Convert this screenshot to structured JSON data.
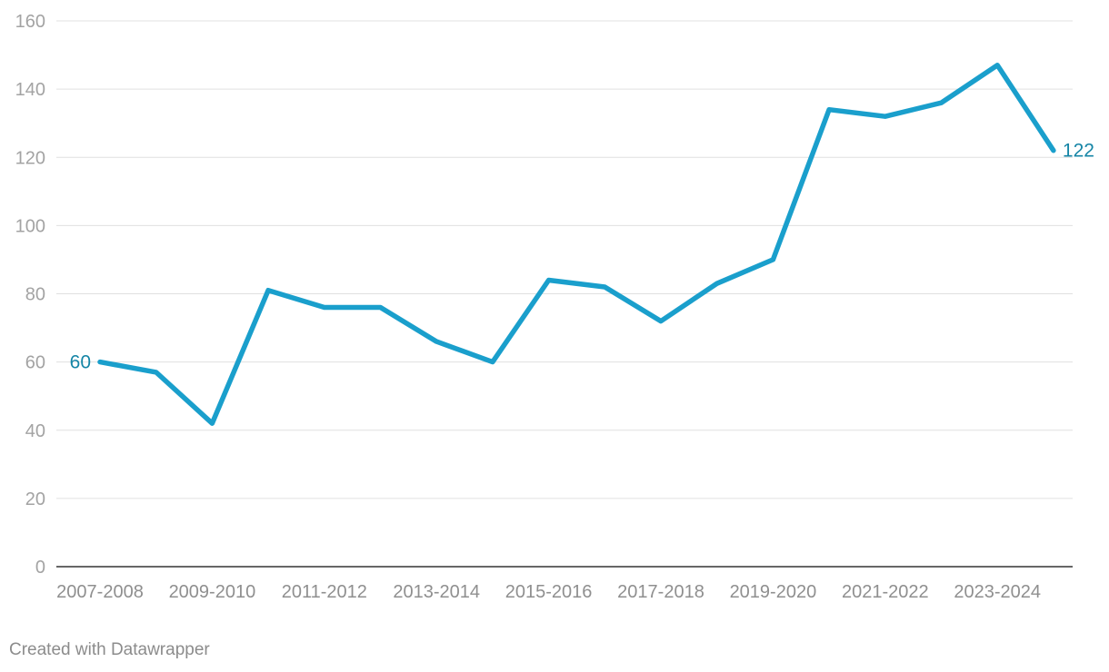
{
  "chart_data": {
    "type": "line",
    "categories": [
      "2007-2008",
      "2008-2009",
      "2009-2010",
      "2010-2011",
      "2011-2012",
      "2012-2013",
      "2013-2014",
      "2014-2015",
      "2015-2016",
      "2016-2017",
      "2017-2018",
      "2018-2019",
      "2019-2020",
      "2020-2021",
      "2021-2022",
      "2022-2023",
      "2023-2024",
      "2024-2025"
    ],
    "x_tick_labels": [
      "2007-2008",
      "2009-2010",
      "2011-2012",
      "2013-2014",
      "2015-2016",
      "2017-2018",
      "2019-2020",
      "2021-2022",
      "2023-2024"
    ],
    "series": [
      {
        "values": [
          60,
          57,
          42,
          81,
          76,
          76,
          66,
          60,
          84,
          82,
          72,
          83,
          90,
          134,
          132,
          136,
          147,
          122
        ]
      }
    ],
    "ylim": [
      0,
      160
    ],
    "y_ticks": [
      0,
      20,
      40,
      60,
      80,
      100,
      120,
      140,
      160
    ],
    "grid": true,
    "data_labels": [
      {
        "index": 0,
        "text": "60"
      },
      {
        "index": 17,
        "text": "122"
      }
    ],
    "colors": {
      "line": "#1a9fcc",
      "label": "#1585a6",
      "grid": "#e0e0e0",
      "axis": "#333333"
    }
  },
  "footer": {
    "credit": "Created with Datawrapper"
  }
}
